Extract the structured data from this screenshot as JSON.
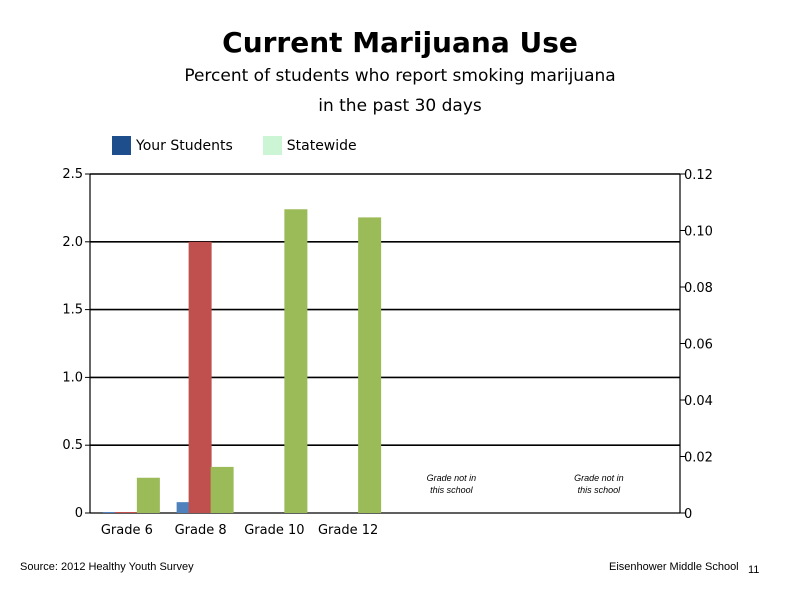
{
  "chart_data": {
    "type": "bar",
    "title": "Current Marijuana Use",
    "subtitle_lines": [
      "Percent of students who report smoking marijuana",
      "in the past 30 days"
    ],
    "categories": [
      "Grade 6",
      "Grade 8",
      "Grade 10",
      "Grade 12"
    ],
    "series": [
      {
        "name": "Your Students",
        "legend_color": "#1f4e8c",
        "values": [
          0.0,
          0.08,
          null,
          null
        ]
      },
      {
        "name": "",
        "color": "#c0504d",
        "values": [
          0.0,
          2.0,
          null,
          null
        ]
      },
      {
        "name": "Statewide",
        "legend_color": "#ccf5d6",
        "bar_color": "#9bbb59",
        "values": [
          0.26,
          0.34,
          2.24,
          2.18
        ]
      }
    ],
    "bar_colors": {
      "your_students": "#4f81bd"
    },
    "y_left": {
      "range": [
        0,
        2.5
      ],
      "ticks": [
        "0",
        "0.5",
        "1.0",
        "1.5",
        "2.0",
        "2.5"
      ]
    },
    "y_right": {
      "range": [
        0,
        0.12
      ],
      "ticks": [
        "0",
        "0.02",
        "0.04",
        "0.06",
        "0.08",
        "0.10",
        "0.12"
      ]
    },
    "grid": true,
    "legend_position": "top-left",
    "annotations": [
      {
        "lines": [
          "Grade not in",
          "this school"
        ]
      },
      {
        "lines": [
          "Grade not in",
          "this school"
        ]
      }
    ]
  },
  "footer": {
    "source": "Source: 2012 Healthy Youth Survey",
    "school": "Eisenhower Middle  School",
    "page_number": "11"
  }
}
